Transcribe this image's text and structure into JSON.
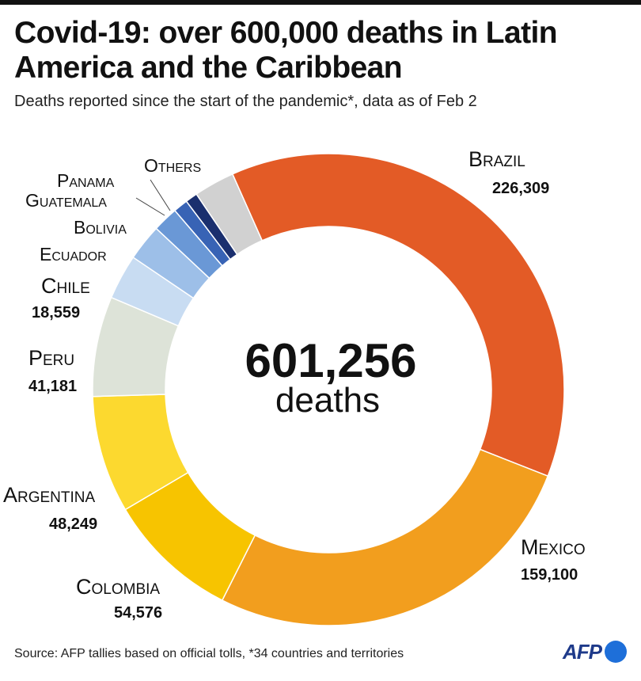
{
  "header": {
    "title": "Covid-19: over 600,000 deaths in Latin America and the Caribbean",
    "subtitle": "Deaths reported since the start of the pandemic*, data as of Feb 2"
  },
  "chart_data": {
    "type": "pie",
    "variant": "donut",
    "total": 601256,
    "total_label": "601,256",
    "total_unit": "deaths",
    "slices": [
      {
        "name": "Brazil",
        "value": 226309,
        "value_label": "226,309",
        "color": "#e35b26"
      },
      {
        "name": "Mexico",
        "value": 159100,
        "value_label": "159,100",
        "color": "#f29e1e"
      },
      {
        "name": "Colombia",
        "value": 54576,
        "value_label": "54,576",
        "color": "#f7c400"
      },
      {
        "name": "Argentina",
        "value": 48249,
        "value_label": "48,249",
        "color": "#fcd92f"
      },
      {
        "name": "Peru",
        "value": 41181,
        "value_label": "41,181",
        "color": "#dde3d8"
      },
      {
        "name": "Chile",
        "value": 18559,
        "value_label": "18,559",
        "color": "#c8dcf2"
      },
      {
        "name": "Ecuador",
        "value": 15000,
        "color": "#9dbfe8"
      },
      {
        "name": "Bolivia",
        "value": 10500,
        "color": "#6a98d6"
      },
      {
        "name": "Guatemala",
        "value": 6000,
        "color": "#3863b5"
      },
      {
        "name": "Panama",
        "value": 5000,
        "color": "#1a2f6e"
      },
      {
        "name": "Others",
        "value": 16782,
        "color": "#d1d1d1"
      }
    ]
  },
  "footer": {
    "source": "Source: AFP tallies based on official tolls, *34 countries and territories",
    "logo_text": "AFP"
  }
}
